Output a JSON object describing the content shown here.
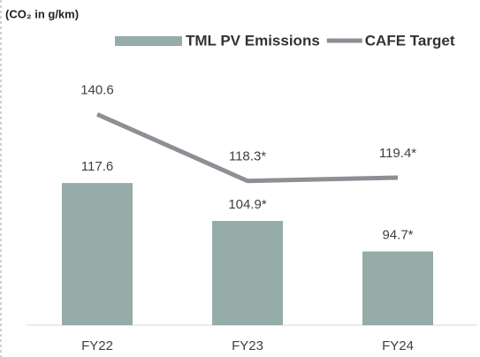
{
  "chart_data": {
    "type": "combo",
    "y_axis_label": "(CO₂ in g/km)",
    "categories": [
      "FY22",
      "FY23",
      "FY24"
    ],
    "series": [
      {
        "name": "TML PV Emissions",
        "type": "bar",
        "color": "#95aca9",
        "values": [
          117.6,
          104.9,
          94.7
        ],
        "value_labels": [
          "117.6",
          "104.9*",
          "94.7*"
        ]
      },
      {
        "name": "CAFE Target",
        "type": "line",
        "color": "#8c8f94",
        "values": [
          140.6,
          118.3,
          119.4
        ],
        "value_labels": [
          "140.6",
          "118.3*",
          "119.4*"
        ]
      }
    ],
    "ylim": [
      70,
      170
    ],
    "legend": "top"
  }
}
